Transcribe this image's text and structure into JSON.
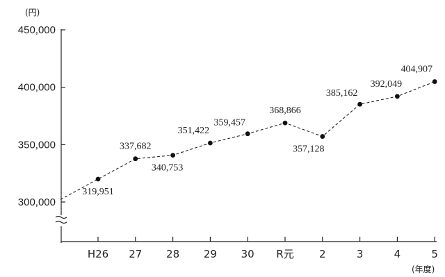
{
  "chart_data": {
    "type": "line",
    "categories": [
      "H26",
      "27",
      "28",
      "29",
      "30",
      "R元",
      "2",
      "3",
      "4",
      "5"
    ],
    "series": [
      {
        "values": [
          319951,
          337682,
          340753,
          351422,
          359457,
          368866,
          357128,
          385162,
          392049,
          404907
        ],
        "value_labels": [
          "319,951",
          "337,682",
          "340,753",
          "351,422",
          "359,457",
          "368,866",
          "357,128",
          "385,162",
          "392,049",
          "404,907"
        ]
      }
    ],
    "title": "",
    "ylabel": "(円)",
    "xlabel": "(年度)",
    "yticks": [
      300000,
      350000,
      400000,
      450000
    ],
    "ytick_labels": [
      "300,000",
      "350,000",
      "400,000",
      "450,000"
    ],
    "axis_break": true,
    "grid": false,
    "legend": "none",
    "colors": {
      "line": "#222222",
      "marker": "#111111"
    }
  }
}
